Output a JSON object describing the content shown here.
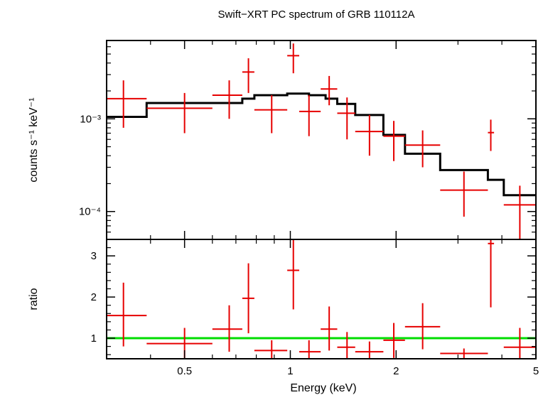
{
  "chart_data": [
    {
      "type": "scatter",
      "title": "Swift−XRT PC spectrum of GRB 110112A",
      "ylabel": "counts s⁻¹ keV⁻¹",
      "xlabel": "",
      "xscale": "log",
      "yscale": "log",
      "xlim": [
        0.3,
        5
      ],
      "ylim": [
        5e-05,
        0.007
      ],
      "ytick_labels": [
        "10⁻³",
        "10⁻⁴"
      ],
      "ytick_values": [
        0.001,
        0.0001
      ],
      "colors": {
        "data": "#e60000",
        "model": "#000000"
      },
      "series": [
        {
          "kind": "errorbar",
          "points": [
            {
              "x": 0.335,
              "xlo": 0.3,
              "xhi": 0.39,
              "y": 0.00165,
              "ylo": 0.0008,
              "yhi": 0.0026
            },
            {
              "x": 0.5,
              "xlo": 0.39,
              "xhi": 0.6,
              "y": 0.0013,
              "ylo": 0.0007,
              "yhi": 0.0019
            },
            {
              "x": 0.67,
              "xlo": 0.6,
              "xhi": 0.73,
              "y": 0.0018,
              "ylo": 0.001,
              "yhi": 0.0026
            },
            {
              "x": 0.76,
              "xlo": 0.73,
              "xhi": 0.79,
              "y": 0.0032,
              "ylo": 0.0019,
              "yhi": 0.0045
            },
            {
              "x": 0.885,
              "xlo": 0.79,
              "xhi": 0.98,
              "y": 0.00125,
              "ylo": 0.0007,
              "yhi": 0.0018
            },
            {
              "x": 1.02,
              "xlo": 0.98,
              "xhi": 1.06,
              "y": 0.0048,
              "ylo": 0.0031,
              "yhi": 0.0065
            },
            {
              "x": 1.13,
              "xlo": 1.06,
              "xhi": 1.22,
              "y": 0.0012,
              "ylo": 0.00065,
              "yhi": 0.0018
            },
            {
              "x": 1.29,
              "xlo": 1.22,
              "xhi": 1.36,
              "y": 0.0021,
              "ylo": 0.0014,
              "yhi": 0.0029
            },
            {
              "x": 1.45,
              "xlo": 1.36,
              "xhi": 1.53,
              "y": 0.00115,
              "ylo": 0.0006,
              "yhi": 0.0017
            },
            {
              "x": 1.68,
              "xlo": 1.53,
              "xhi": 1.84,
              "y": 0.00073,
              "ylo": 0.0004,
              "yhi": 0.0011
            },
            {
              "x": 1.97,
              "xlo": 1.84,
              "xhi": 2.12,
              "y": 0.00065,
              "ylo": 0.00035,
              "yhi": 0.00095
            },
            {
              "x": 2.38,
              "xlo": 2.12,
              "xhi": 2.67,
              "y": 0.00052,
              "ylo": 0.0003,
              "yhi": 0.00075
            },
            {
              "x": 3.12,
              "xlo": 2.67,
              "xhi": 3.65,
              "y": 0.00017,
              "ylo": 8.8e-05,
              "yhi": 0.00027
            },
            {
              "x": 3.72,
              "xlo": 3.65,
              "xhi": 3.8,
              "y": 0.00071,
              "ylo": 0.00045,
              "yhi": 0.00098
            },
            {
              "x": 4.5,
              "xlo": 4.05,
              "xhi": 5.0,
              "y": 0.000118,
              "ylo": 5e-05,
              "yhi": 0.00019
            }
          ]
        },
        {
          "kind": "step",
          "edges": [
            0.3,
            0.39,
            0.73,
            0.79,
            0.98,
            1.13,
            1.26,
            1.36,
            1.53,
            1.84,
            2.12,
            2.67,
            3.65,
            4.05,
            5.0
          ],
          "values": [
            0.00105,
            0.00148,
            0.00165,
            0.0018,
            0.00187,
            0.0018,
            0.00165,
            0.00145,
            0.0011,
            0.00067,
            0.00042,
            0.00028,
            0.00022,
            0.00015
          ]
        }
      ]
    },
    {
      "type": "scatter",
      "title": "",
      "ylabel": "ratio",
      "xlabel": "Energy (keV)",
      "xscale": "log",
      "yscale": "linear",
      "xlim": [
        0.3,
        5
      ],
      "ylim": [
        0.5,
        3.4
      ],
      "ytick_labels": [
        "1",
        "2",
        "3"
      ],
      "ytick_values": [
        1,
        2,
        3
      ],
      "xtick_labels": [
        "0.5",
        "1",
        "2",
        "5"
      ],
      "xtick_values": [
        0.5,
        1,
        2,
        5
      ],
      "colors": {
        "data": "#e60000",
        "reference": "#00dd00"
      },
      "reference_line": 1,
      "series": [
        {
          "kind": "errorbar",
          "points": [
            {
              "x": 0.335,
              "xlo": 0.3,
              "xhi": 0.39,
              "y": 1.55,
              "ylo": 0.8,
              "yhi": 2.35
            },
            {
              "x": 0.5,
              "xlo": 0.39,
              "xhi": 0.6,
              "y": 0.87,
              "ylo": 0.5,
              "yhi": 1.25
            },
            {
              "x": 0.67,
              "xlo": 0.6,
              "xhi": 0.73,
              "y": 1.22,
              "ylo": 0.67,
              "yhi": 1.8
            },
            {
              "x": 0.76,
              "xlo": 0.73,
              "xhi": 0.79,
              "y": 1.97,
              "ylo": 1.12,
              "yhi": 2.82
            },
            {
              "x": 0.885,
              "xlo": 0.79,
              "xhi": 0.98,
              "y": 0.7,
              "ylo": 0.5,
              "yhi": 0.95
            },
            {
              "x": 1.02,
              "xlo": 0.98,
              "xhi": 1.06,
              "y": 2.65,
              "ylo": 1.7,
              "yhi": 3.4
            },
            {
              "x": 1.13,
              "xlo": 1.06,
              "xhi": 1.22,
              "y": 0.67,
              "ylo": 0.5,
              "yhi": 0.95
            },
            {
              "x": 1.29,
              "xlo": 1.22,
              "xhi": 1.36,
              "y": 1.22,
              "ylo": 0.7,
              "yhi": 1.77
            },
            {
              "x": 1.45,
              "xlo": 1.36,
              "xhi": 1.53,
              "y": 0.78,
              "ylo": 0.5,
              "yhi": 1.15
            },
            {
              "x": 1.68,
              "xlo": 1.53,
              "xhi": 1.84,
              "y": 0.67,
              "ylo": 0.5,
              "yhi": 0.92
            },
            {
              "x": 1.97,
              "xlo": 1.84,
              "xhi": 2.12,
              "y": 0.95,
              "ylo": 0.52,
              "yhi": 1.37
            },
            {
              "x": 2.38,
              "xlo": 2.12,
              "xhi": 2.67,
              "y": 1.28,
              "ylo": 0.73,
              "yhi": 1.85
            },
            {
              "x": 3.12,
              "xlo": 2.67,
              "xhi": 3.65,
              "y": 0.63,
              "ylo": 0.5,
              "yhi": 0.75
            },
            {
              "x": 3.72,
              "xlo": 3.65,
              "xhi": 3.8,
              "y": 3.3,
              "ylo": 1.75,
              "yhi": 3.4
            },
            {
              "x": 4.5,
              "xlo": 4.05,
              "xhi": 5.0,
              "y": 0.78,
              "ylo": 0.5,
              "yhi": 1.25
            }
          ]
        }
      ]
    }
  ]
}
